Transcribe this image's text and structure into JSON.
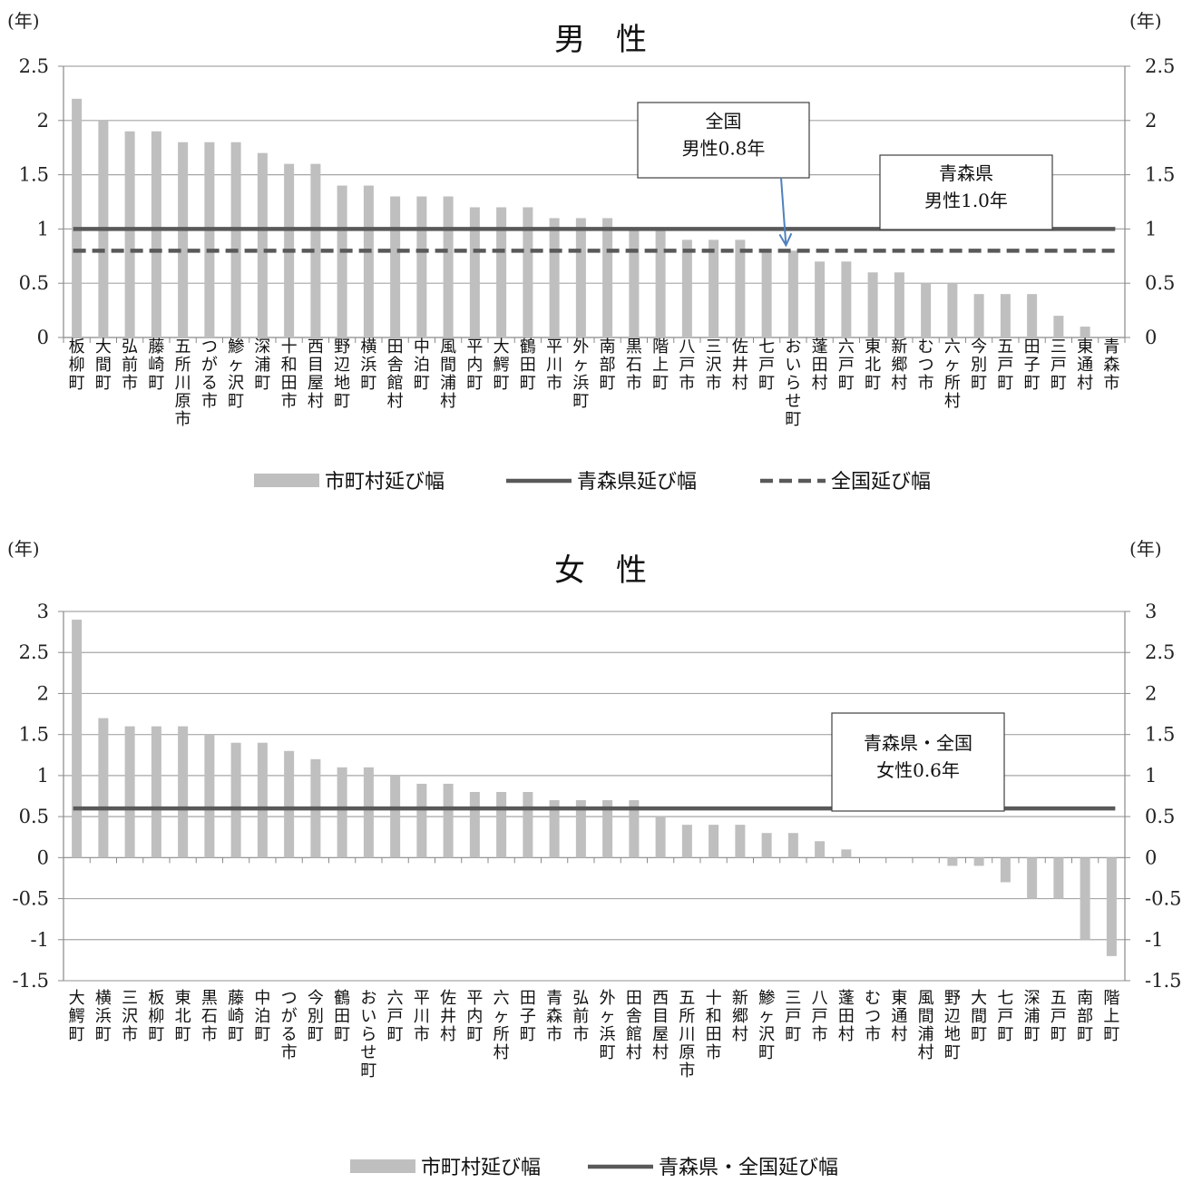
{
  "charts": [
    {
      "type": "bar",
      "title": "男　性",
      "y_unit_left": "(年)",
      "y_unit_right": "(年)",
      "ylim": [
        0,
        2.5
      ],
      "yticks": [
        0,
        0.5,
        1,
        1.5,
        2,
        2.5
      ],
      "ytick_labels": [
        "0",
        "0.5",
        "1",
        "1.5",
        "2",
        "2.5"
      ],
      "grid": true,
      "legend_position": "bottom",
      "colors": {
        "bar": "#bfbfbf",
        "pref_line": "#595959",
        "nation_line": "#595959",
        "arrow": "#4f81bd"
      },
      "categories": [
        "板柳町",
        "大間町",
        "弘前市",
        "藤崎町",
        "五所川原市",
        "つがる市",
        "鯵ヶ沢町",
        "深浦町",
        "十和田市",
        "西目屋村",
        "野辺地町",
        "横浜町",
        "田舎館村",
        "中泊町",
        "風間浦村",
        "平内町",
        "大鰐町",
        "鶴田町",
        "平川市",
        "外ヶ浜町",
        "南部町",
        "黒石市",
        "階上町",
        "八戸市",
        "三沢市",
        "佐井村",
        "七戸町",
        "おいらせ町",
        "蓬田村",
        "六戸町",
        "東北町",
        "新郷村",
        "むつ市",
        "六ヶ所村",
        "今別町",
        "五戸町",
        "田子町",
        "三戸町",
        "東通村",
        "青森市"
      ],
      "series": [
        {
          "name": "市町村延び幅",
          "kind": "bar",
          "values": [
            2.2,
            2.0,
            1.9,
            1.9,
            1.8,
            1.8,
            1.8,
            1.7,
            1.6,
            1.6,
            1.4,
            1.4,
            1.3,
            1.3,
            1.3,
            1.2,
            1.2,
            1.2,
            1.1,
            1.1,
            1.1,
            1.0,
            1.0,
            0.9,
            0.9,
            0.9,
            0.8,
            0.8,
            0.7,
            0.7,
            0.6,
            0.6,
            0.5,
            0.5,
            0.4,
            0.4,
            0.4,
            0.2,
            0.1,
            0.0
          ]
        },
        {
          "name": "青森県延び幅",
          "kind": "line",
          "value": 1.0
        },
        {
          "name": "全国延び幅",
          "kind": "dashed",
          "value": 0.8
        }
      ],
      "legend": [
        "市町村延び幅",
        "青森県延び幅",
        "全国延び幅"
      ],
      "annotations": [
        {
          "lines": [
            "全国",
            "男性0.8年"
          ],
          "arrow_to_category": "おいらせ町",
          "arrow_to_value": 0.8
        },
        {
          "lines": [
            "青森県",
            "男性1.0年"
          ]
        }
      ]
    },
    {
      "type": "bar",
      "title": "女　性",
      "y_unit_left": "(年)",
      "y_unit_right": "(年)",
      "ylim": [
        -1.5,
        3
      ],
      "yticks": [
        -1.5,
        -1,
        -0.5,
        0,
        0.5,
        1,
        1.5,
        2,
        2.5,
        3
      ],
      "ytick_labels": [
        "-1.5",
        "-1",
        "-0.5",
        "0",
        "0.5",
        "1",
        "1.5",
        "2",
        "2.5",
        "3"
      ],
      "grid": true,
      "legend_position": "bottom",
      "colors": {
        "bar": "#bfbfbf",
        "pref_line": "#595959"
      },
      "categories": [
        "大鰐町",
        "横浜町",
        "三沢市",
        "板柳町",
        "東北町",
        "黒石市",
        "藤崎町",
        "中泊町",
        "つがる市",
        "今別町",
        "鶴田町",
        "おいらせ町",
        "六戸町",
        "平川市",
        "佐井村",
        "平内町",
        "六ヶ所村",
        "田子町",
        "青森市",
        "弘前市",
        "外ヶ浜町",
        "田舎館村",
        "西目屋村",
        "五所川原市",
        "十和田市",
        "新郷村",
        "鯵ヶ沢町",
        "三戸町",
        "八戸市",
        "蓬田村",
        "むつ市",
        "東通村",
        "風間浦村",
        "野辺地町",
        "大間町",
        "七戸町",
        "深浦町",
        "五戸町",
        "南部町",
        "階上町"
      ],
      "series": [
        {
          "name": "市町村延び幅",
          "kind": "bar",
          "values": [
            2.9,
            1.7,
            1.6,
            1.6,
            1.6,
            1.5,
            1.4,
            1.4,
            1.3,
            1.2,
            1.1,
            1.1,
            1.0,
            0.9,
            0.9,
            0.8,
            0.8,
            0.8,
            0.7,
            0.7,
            0.7,
            0.7,
            0.5,
            0.4,
            0.4,
            0.4,
            0.3,
            0.3,
            0.2,
            0.1,
            0.0,
            0.0,
            0.0,
            -0.1,
            -0.1,
            -0.3,
            -0.5,
            -0.5,
            -1.0,
            -1.2
          ]
        },
        {
          "name": "青森県・全国延び幅",
          "kind": "line",
          "value": 0.6
        }
      ],
      "legend": [
        "市町村延び幅",
        "青森県・全国延び幅"
      ],
      "annotations": [
        {
          "lines": [
            "青森県・全国",
            "女性0.6年"
          ]
        }
      ]
    }
  ]
}
